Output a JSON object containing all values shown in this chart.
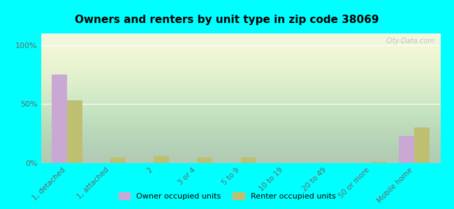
{
  "title": "Owners and renters by unit type in zip code 38069",
  "categories": [
    "1, detached",
    "1, attached",
    "2",
    "3 or 4",
    "5 to 9",
    "10 to 19",
    "20 to 49",
    "50 or more",
    "Mobile home"
  ],
  "owner_values": [
    75,
    0,
    0,
    0,
    0,
    0,
    0,
    0,
    23
  ],
  "renter_values": [
    53,
    5,
    6,
    5,
    5,
    0,
    0,
    1,
    30
  ],
  "owner_color": "#c9a8d4",
  "renter_color": "#bfbf72",
  "background_color": "#00ffff",
  "yticks": [
    0,
    50,
    100
  ],
  "ylabels": [
    "0%",
    "50%",
    "100%"
  ],
  "ylim": [
    0,
    110
  ],
  "bar_width": 0.35,
  "legend_owner": "Owner occupied units",
  "legend_renter": "Renter occupied units",
  "watermark": "City-Data.com",
  "plot_bg_color": "#eef5e0"
}
